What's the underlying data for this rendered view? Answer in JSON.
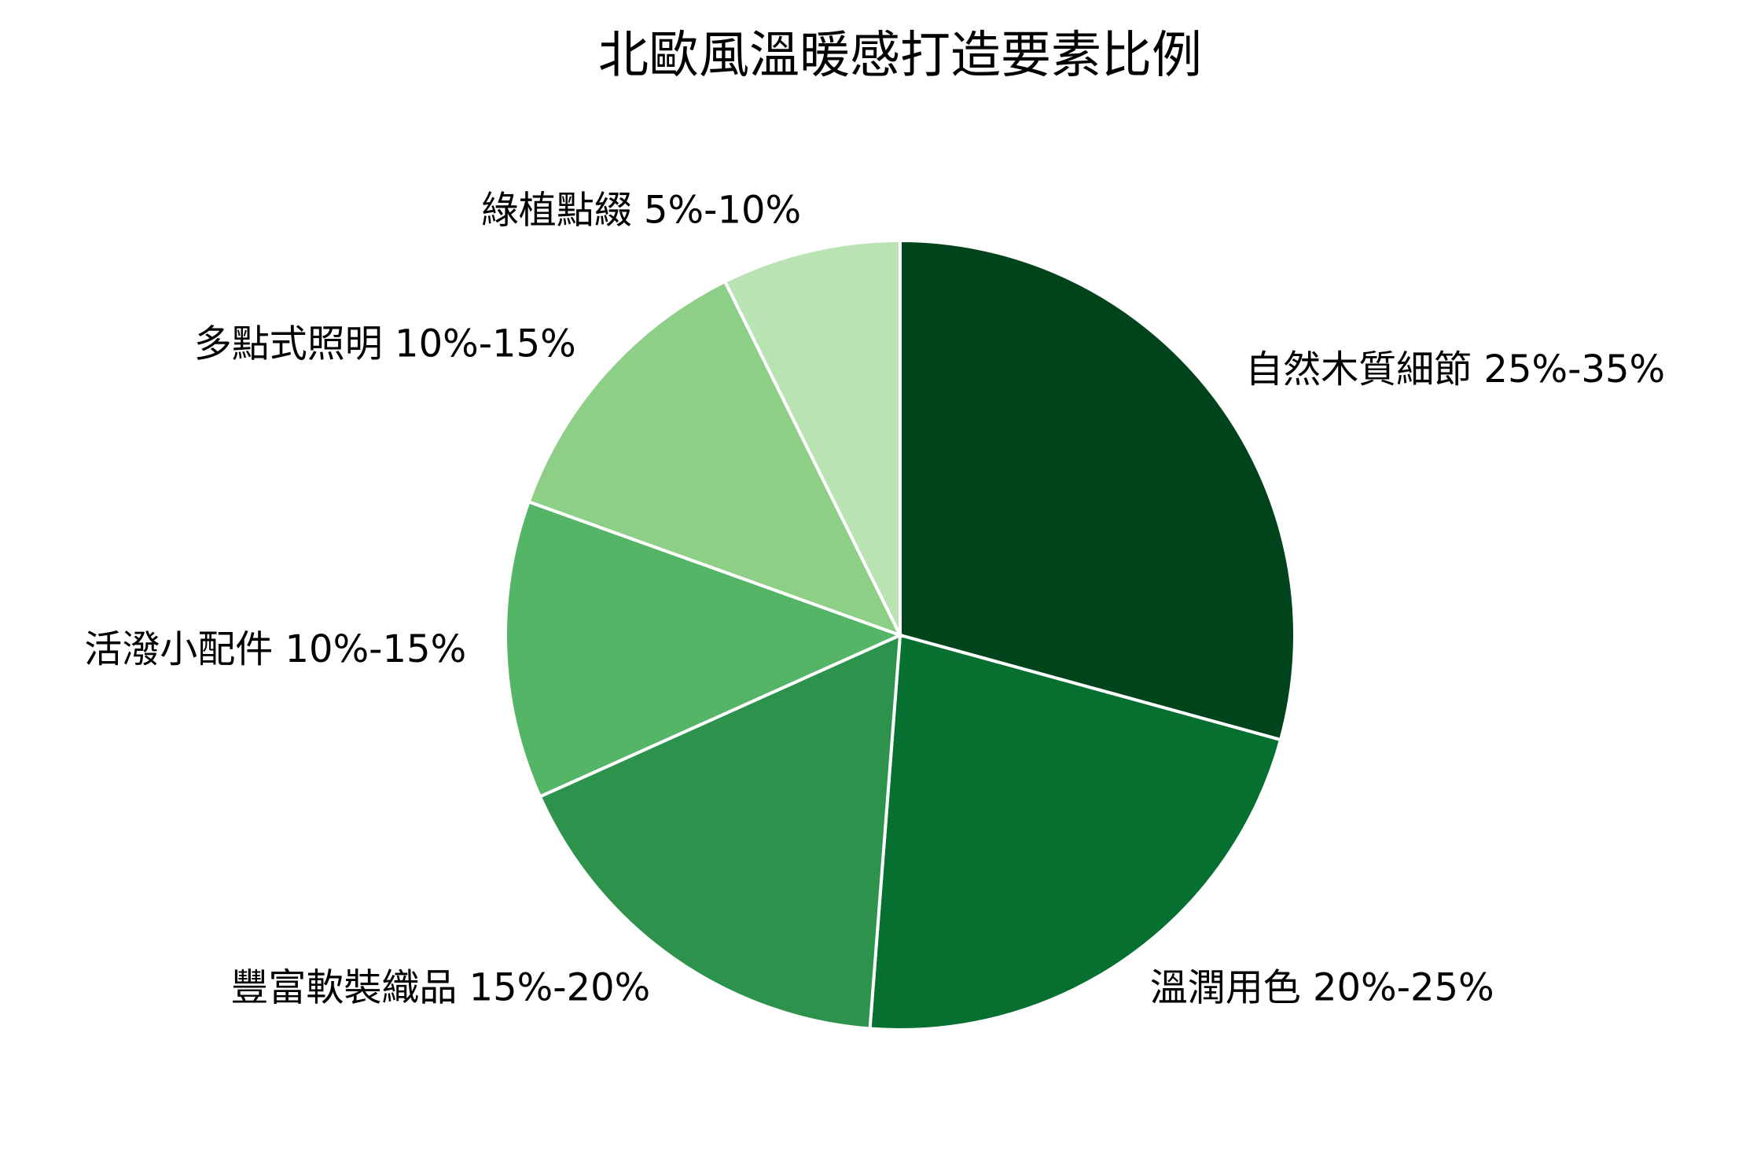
{
  "chart_data": {
    "type": "pie",
    "title": "北歐風溫暖感打造要素比例",
    "start_angle": "top",
    "direction": "clockwise",
    "slices": [
      {
        "label": "自然木質細節 25%-35%",
        "value": 30,
        "color": "#00441b"
      },
      {
        "label": "溫潤用色 20%-25%",
        "value": 22.5,
        "color": "#067030"
      },
      {
        "label": "豐富軟裝織品 15%-20%",
        "value": 17.5,
        "color": "#2d924b"
      },
      {
        "label": "活潑小配件 10%-15%",
        "value": 12.5,
        "color": "#55b567"
      },
      {
        "label": "多點式照明 10%-15%",
        "value": 12.5,
        "color": "#8ecf88"
      },
      {
        "label": "綠植點綴 5%-10%",
        "value": 7.5,
        "color": "#b9e3b2"
      }
    ],
    "edge_color": "#ffffff"
  }
}
